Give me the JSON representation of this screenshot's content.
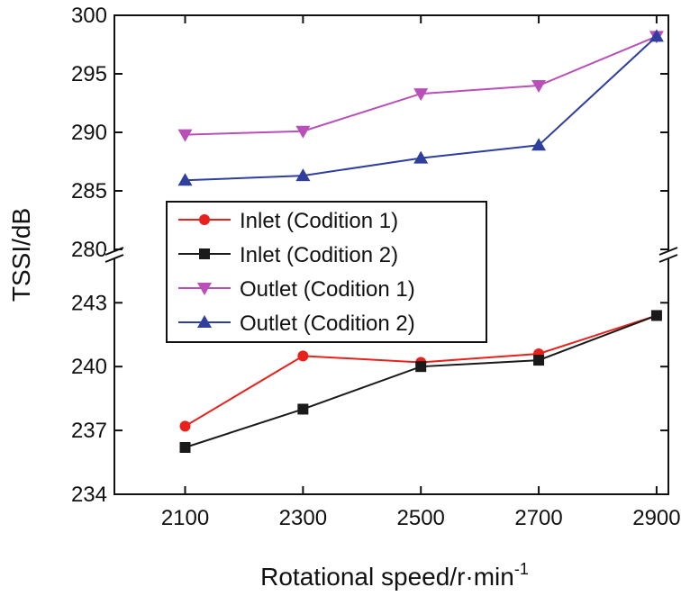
{
  "chart_data": {
    "type": "line",
    "title": "",
    "xlabel": "Rotational speed/r·min",
    "xlabel_superscript": "-1",
    "ylabel": "TSSI/dB",
    "x": [
      2100,
      2300,
      2500,
      2700,
      2900
    ],
    "x_ticks": [
      "2100",
      "2300",
      "2500",
      "2700",
      "2900"
    ],
    "xlim": [
      1980,
      2920
    ],
    "y_axis_break": true,
    "y_upper_ticks": [
      "300",
      "295",
      "290",
      "285",
      "280"
    ],
    "y_lower_ticks": [
      "243",
      "240",
      "237",
      "234"
    ],
    "y_upper_range": [
      280,
      300
    ],
    "y_lower_range": [
      234,
      245
    ],
    "grid": false,
    "legend_position": "middle-left",
    "series": [
      {
        "name": "Inlet (Codition 1)",
        "color": "#e8211c",
        "marker": "circle",
        "segment": "lower",
        "values": [
          237.2,
          240.5,
          240.2,
          240.6,
          242.4
        ]
      },
      {
        "name": "Inlet (Codition 2)",
        "color": "#1a1a1a",
        "marker": "square",
        "segment": "lower",
        "values": [
          236.2,
          238.0,
          240.0,
          240.3,
          242.4
        ]
      },
      {
        "name": "Outlet (Codition 1)",
        "color": "#b94fb8",
        "marker": "triangle-down",
        "segment": "upper",
        "values": [
          289.8,
          290.1,
          293.3,
          294.0,
          298.2
        ]
      },
      {
        "name": "Outlet (Codition 2)",
        "color": "#2e3f9e",
        "marker": "triangle-up",
        "segment": "upper",
        "values": [
          285.9,
          286.3,
          287.8,
          288.9,
          298.2
        ]
      }
    ]
  }
}
